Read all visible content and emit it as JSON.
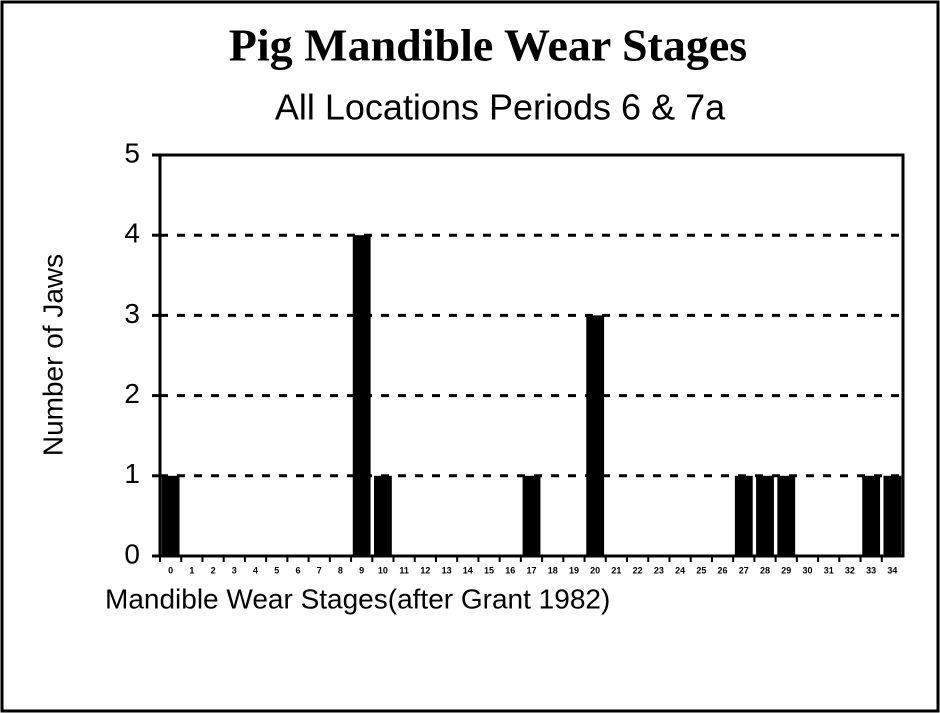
{
  "chart_data": {
    "type": "bar",
    "title": "Pig Mandible Wear Stages",
    "subtitle": "All Locations Periods 6 & 7a",
    "x_label": "Mandible Wear Stages(after Grant 1982)",
    "y_label": "Number of Jaws",
    "categories": [
      "0",
      "1",
      "2",
      "3",
      "4",
      "5",
      "6",
      "7",
      "8",
      "9",
      "10",
      "11",
      "12",
      "13",
      "14",
      "15",
      "16",
      "17",
      "18",
      "19",
      "20",
      "21",
      "22",
      "23",
      "24",
      "25",
      "26",
      "27",
      "28",
      "29",
      "30",
      "31",
      "32",
      "33",
      "34"
    ],
    "values": [
      1,
      0,
      0,
      0,
      0,
      0,
      0,
      0,
      0,
      4,
      1,
      0,
      0,
      0,
      0,
      0,
      0,
      1,
      0,
      0,
      3,
      0,
      0,
      0,
      0,
      0,
      0,
      1,
      1,
      1,
      0,
      0,
      0,
      1,
      1
    ],
    "color": "#000000",
    "ylim": [
      0,
      5
    ],
    "yticks": [
      0,
      1,
      2,
      3,
      4,
      5
    ],
    "grid": true
  }
}
